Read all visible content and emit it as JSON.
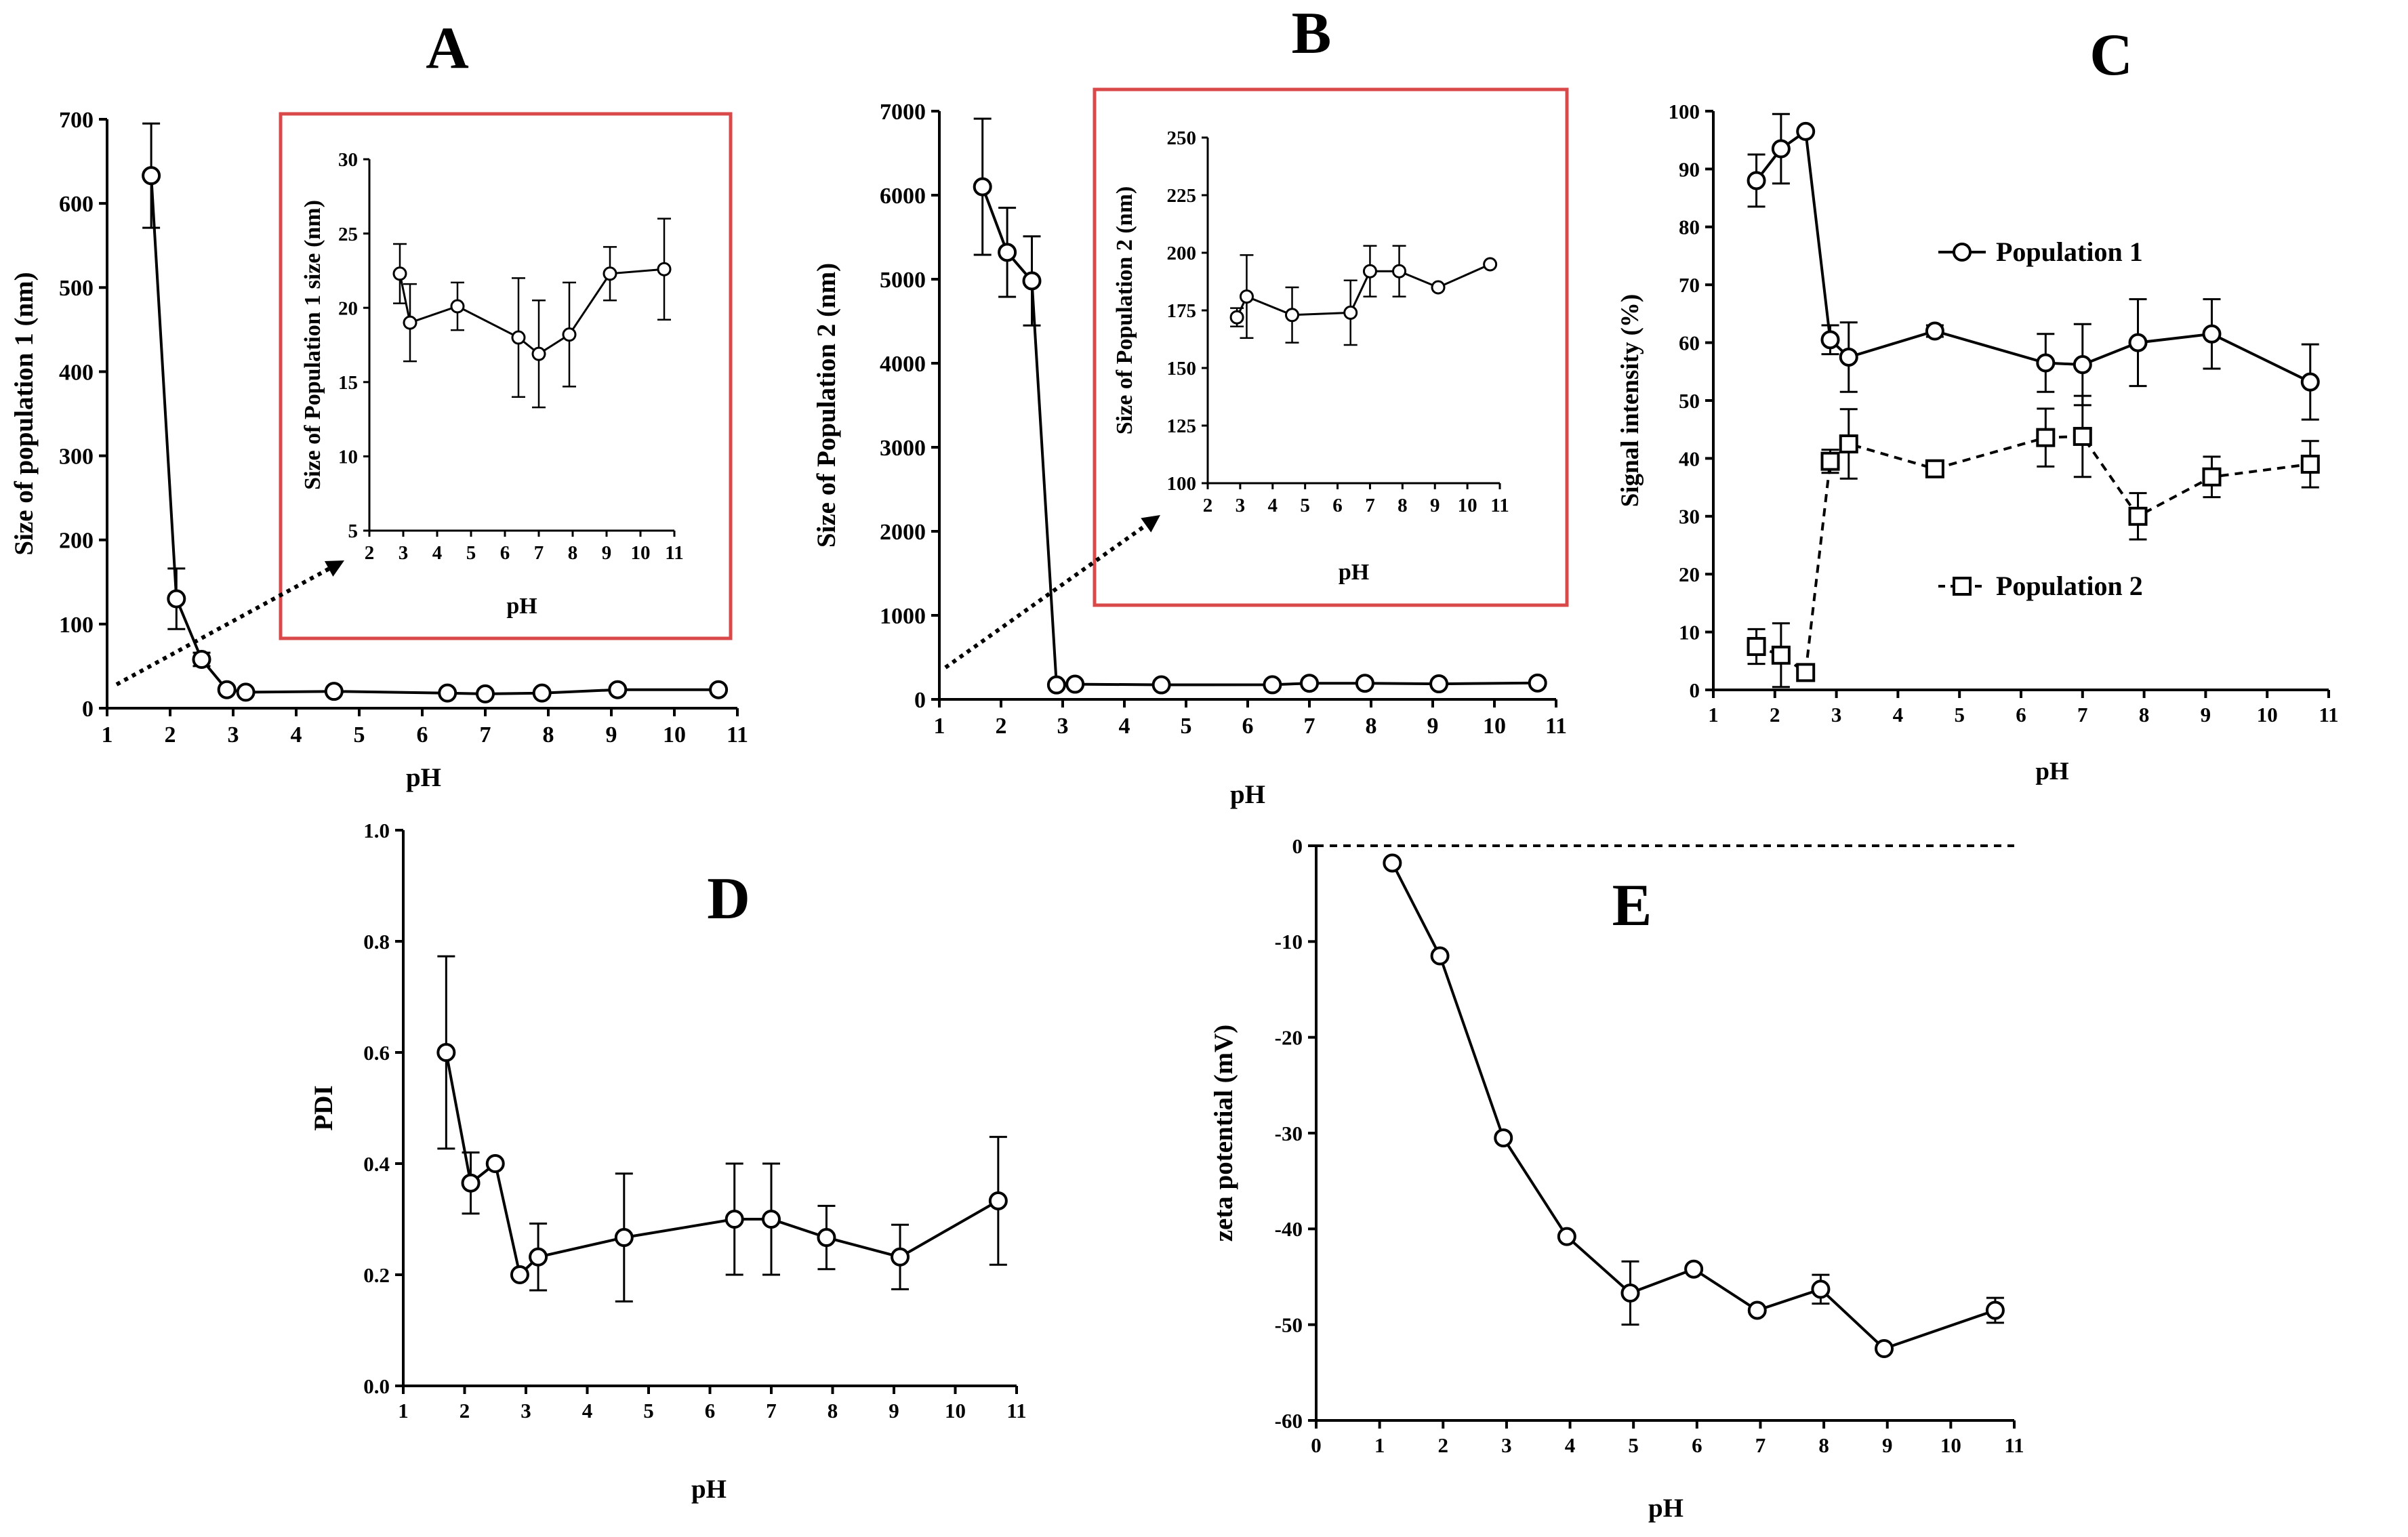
{
  "colors": {
    "line": "#000000",
    "inset_border": "#d9494a",
    "background": "#ffffff"
  },
  "chart_data": [
    {
      "id": "A",
      "panel_label": "A",
      "type": "line",
      "xlabel": "pH",
      "ylabel": "Size of population 1 (nm)",
      "xlim": [
        1,
        11
      ],
      "ylim": [
        0,
        700
      ],
      "xticks": [
        1,
        2,
        3,
        4,
        5,
        6,
        7,
        8,
        9,
        10,
        11
      ],
      "yticks": [
        0,
        100,
        200,
        300,
        400,
        500,
        600,
        700
      ],
      "series": [
        {
          "name": "Population 1",
          "marker": "circle",
          "dashed": false,
          "x": [
            1.7,
            2.1,
            2.5,
            2.9,
            3.2,
            4.6,
            6.4,
            7.0,
            7.9,
            9.1,
            10.7
          ],
          "y": [
            633,
            130,
            58,
            22,
            19,
            20,
            18,
            17,
            18,
            22,
            22
          ],
          "err": [
            62,
            36,
            8,
            0,
            0,
            0,
            0,
            0,
            0,
            0,
            0
          ]
        }
      ],
      "inset": {
        "xlabel": "pH",
        "ylabel": "Size of Population 1 size (nm)",
        "xlim": [
          2,
          11
        ],
        "ylim": [
          5,
          30
        ],
        "xticks": [
          2,
          3,
          4,
          5,
          6,
          7,
          8,
          9,
          10,
          11
        ],
        "yticks": [
          5,
          10,
          15,
          20,
          25,
          30
        ],
        "series": [
          {
            "name": "Population 1",
            "marker": "circle",
            "x": [
              2.9,
              3.2,
              4.6,
              6.4,
              7.0,
              7.9,
              9.1,
              10.7
            ],
            "y": [
              22.3,
              19.0,
              20.1,
              18.0,
              16.9,
              18.2,
              22.3,
              22.6
            ],
            "err": [
              2.0,
              2.6,
              1.6,
              4.0,
              3.6,
              3.5,
              1.8,
              3.4
            ]
          }
        ]
      }
    },
    {
      "id": "B",
      "panel_label": "B",
      "type": "line",
      "xlabel": "pH",
      "ylabel": "Size of Population 2 (nm)",
      "xlim": [
        1,
        11
      ],
      "ylim": [
        0,
        7000
      ],
      "xticks": [
        1,
        2,
        3,
        4,
        5,
        6,
        7,
        8,
        9,
        10,
        11
      ],
      "yticks": [
        0,
        1000,
        2000,
        3000,
        4000,
        5000,
        6000,
        7000
      ],
      "series": [
        {
          "name": "Population 2",
          "marker": "circle",
          "dashed": false,
          "x": [
            1.7,
            2.1,
            2.5,
            2.9,
            3.2,
            4.6,
            6.4,
            7.0,
            7.9,
            9.1,
            10.7
          ],
          "y": [
            6100,
            5320,
            4980,
            172,
            181,
            173,
            174,
            192,
            192,
            185,
            195
          ],
          "err": [
            810,
            530,
            530,
            0,
            0,
            0,
            0,
            0,
            0,
            0,
            0
          ]
        }
      ],
      "inset": {
        "xlabel": "pH",
        "ylabel": "Size of Population 2 (nm)",
        "xlim": [
          2,
          11
        ],
        "ylim": [
          100,
          250
        ],
        "xticks": [
          2,
          3,
          4,
          5,
          6,
          7,
          8,
          9,
          10,
          11
        ],
        "yticks": [
          100,
          125,
          150,
          175,
          200,
          225,
          250
        ],
        "series": [
          {
            "name": "Population 2",
            "marker": "circle",
            "x": [
              2.9,
              3.2,
              4.6,
              6.4,
              7.0,
              7.9,
              9.1,
              10.7
            ],
            "y": [
              172,
              181,
              173,
              174,
              192,
              192,
              185,
              195
            ],
            "err": [
              4,
              18,
              12,
              14,
              11,
              11,
              0,
              0
            ]
          }
        ]
      }
    },
    {
      "id": "C",
      "panel_label": "C",
      "type": "line",
      "xlabel": "pH",
      "ylabel": "Signal intensity (%)",
      "xlim": [
        1,
        11
      ],
      "ylim": [
        0,
        100
      ],
      "xticks": [
        1,
        2,
        3,
        4,
        5,
        6,
        7,
        8,
        9,
        10,
        11
      ],
      "yticks": [
        0,
        10,
        20,
        30,
        40,
        50,
        60,
        70,
        80,
        90,
        100
      ],
      "legend": [
        "Population 1",
        "Population 2"
      ],
      "series": [
        {
          "name": "Population 1",
          "marker": "circle",
          "dashed": false,
          "x": [
            1.7,
            2.1,
            2.5,
            2.9,
            3.2,
            4.6,
            6.4,
            7.0,
            7.9,
            9.1,
            10.7
          ],
          "y": [
            88,
            93.5,
            96.5,
            60.5,
            57.5,
            62,
            56.5,
            56.2,
            60,
            61.5,
            53.2
          ],
          "err": [
            4.5,
            6,
            0,
            2.5,
            6,
            1,
            5,
            7,
            7.5,
            6,
            6.5
          ]
        },
        {
          "name": "Population 2",
          "marker": "square",
          "dashed": true,
          "x": [
            1.7,
            2.1,
            2.5,
            2.9,
            3.2,
            4.6,
            6.4,
            7.0,
            7.9,
            9.1,
            10.7
          ],
          "y": [
            7.5,
            6,
            3,
            39.5,
            42.5,
            38.2,
            43.6,
            43.8,
            30,
            36.8,
            39
          ],
          "err": [
            3,
            5.5,
            0,
            2,
            6,
            1,
            5,
            7,
            4,
            3.5,
            4
          ]
        }
      ]
    },
    {
      "id": "D",
      "panel_label": "D",
      "type": "line",
      "xlabel": "pH",
      "ylabel": "PDI",
      "xlim": [
        1,
        11
      ],
      "ylim": [
        0,
        1
      ],
      "xticks": [
        1,
        2,
        3,
        4,
        5,
        6,
        7,
        8,
        9,
        10,
        11
      ],
      "yticks": [
        0.0,
        0.2,
        0.4,
        0.6,
        0.8,
        1.0
      ],
      "ytick_labels": [
        "0.0",
        "0.2",
        "0.4",
        "0.6",
        "0.8",
        "1.0"
      ],
      "series": [
        {
          "name": "PDI",
          "marker": "circle",
          "dashed": false,
          "x": [
            1.7,
            2.1,
            2.5,
            2.9,
            3.2,
            4.6,
            6.4,
            7.0,
            7.9,
            9.1,
            10.7
          ],
          "y": [
            0.6,
            0.365,
            0.4,
            0.2,
            0.232,
            0.267,
            0.3,
            0.3,
            0.267,
            0.232,
            0.333
          ],
          "err": [
            0.173,
            0.055,
            0,
            0,
            0.06,
            0.115,
            0.1,
            0.1,
            0.057,
            0.058,
            0.115
          ]
        }
      ]
    },
    {
      "id": "E",
      "panel_label": "E",
      "type": "line",
      "xlabel": "pH",
      "ylabel": "zeta potential (mV)",
      "xlim": [
        0,
        11
      ],
      "ylim": [
        -60,
        0
      ],
      "xticks": [
        0,
        1,
        2,
        3,
        4,
        5,
        6,
        7,
        8,
        9,
        10,
        11
      ],
      "yticks": [
        -60,
        -50,
        -40,
        -30,
        -20,
        -10,
        0
      ],
      "ytick_labels": [
        "-60",
        "-50",
        "-40",
        "-30",
        "-20",
        "-10",
        "0"
      ],
      "series": [
        {
          "name": "zeta potential",
          "marker": "circle",
          "dashed": false,
          "x": [
            1.2,
            1.95,
            2.95,
            3.95,
            4.95,
            5.95,
            6.95,
            7.95,
            8.95,
            10.7
          ],
          "y": [
            -1.8,
            -11.5,
            -30.5,
            -40.8,
            -46.7,
            -44.2,
            -48.5,
            -46.3,
            -52.5,
            -48.5
          ],
          "err": [
            0,
            0,
            0,
            0,
            3.3,
            0,
            0,
            1.5,
            0,
            1.3
          ]
        }
      ],
      "zero_line": true
    }
  ]
}
